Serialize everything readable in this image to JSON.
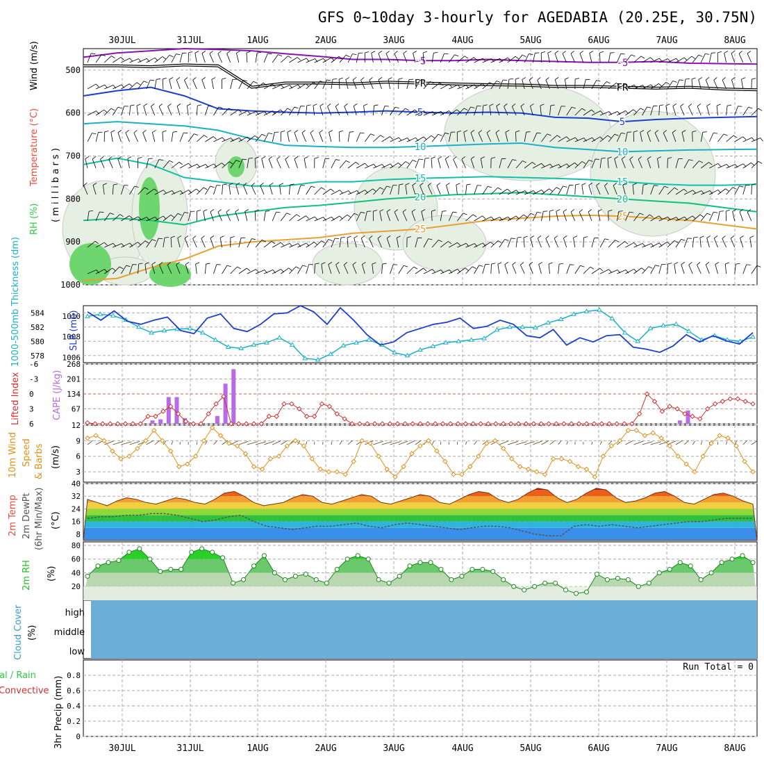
{
  "title": "GFS 0~10day 3-hourly for AGEDABIA (20.25E, 30.75N)",
  "dates": [
    "30JUL",
    "31JUL",
    "1AUG",
    "2AUG",
    "3AUG",
    "4AUG",
    "5AUG",
    "6AUG",
    "7AUG",
    "8AUG"
  ],
  "colors": {
    "rh": "#2ecc40",
    "temperature": "#e74c3c",
    "wind": "#000000",
    "thickness": "#1ab0c8",
    "slp": "#1a3fd0",
    "cape": "#b86ae8",
    "li": "#d03030",
    "wind10": "#e0901a",
    "rh2m": "#22c022",
    "cloud": "#6baed6",
    "precip_total": "#2ecc40",
    "precip_conv": "#d03030"
  },
  "panels": {
    "upper": {
      "y_ticks": [
        "500",
        "600",
        "700",
        "800",
        "900",
        "1000"
      ],
      "labels": {
        "rh": "RH (%)",
        "temperature": "Temperature (°C)",
        "wind": "Wind (m/s)",
        "pressure": "( m i l l i b a r s )"
      },
      "contours": [
        {
          "label": "FR",
          "color": "#000000",
          "values": [
            490,
            490,
            492,
            488,
            490,
            540,
            530,
            530,
            532,
            528,
            530,
            532,
            534,
            535,
            538,
            538,
            540,
            542,
            540,
            544,
            546
          ],
          "double": true
        },
        {
          "label": "-5",
          "color": "#8a10b0",
          "values": [
            470,
            460,
            455,
            450,
            452,
            455,
            462,
            468,
            475,
            475,
            478,
            478,
            475,
            478,
            480,
            482,
            482,
            480,
            484,
            485,
            486
          ]
        },
        {
          "label": "5",
          "color": "#1a3fd0",
          "values": [
            560,
            548,
            540,
            560,
            590,
            595,
            598,
            600,
            598,
            595,
            598,
            600,
            598,
            600,
            610,
            612,
            620,
            615,
            612,
            610,
            608
          ]
        },
        {
          "label": "10",
          "color": "#1ab0c8",
          "values": [
            625,
            620,
            625,
            630,
            640,
            660,
            675,
            678,
            680,
            680,
            678,
            675,
            672,
            670,
            680,
            685,
            690,
            688,
            686,
            685,
            684
          ]
        },
        {
          "label": "15",
          "color": "#10c0a8",
          "values": [
            720,
            705,
            720,
            750,
            760,
            770,
            770,
            760,
            760,
            755,
            752,
            750,
            748,
            750,
            752,
            755,
            760,
            765,
            768,
            768,
            766
          ]
        },
        {
          "label": "20",
          "color": "#10c080",
          "values": [
            850,
            845,
            850,
            860,
            840,
            830,
            820,
            815,
            808,
            800,
            795,
            790,
            788,
            785,
            790,
            795,
            800,
            805,
            810,
            820,
            830
          ]
        },
        {
          "label": "25",
          "color": "#e8a030",
          "values": [
            990,
            985,
            960,
            940,
            910,
            900,
            895,
            890,
            880,
            875,
            870,
            860,
            850,
            845,
            840,
            838,
            840,
            845,
            850,
            860,
            870
          ]
        }
      ],
      "wind_barbs_note": ""
    },
    "slp": {
      "y_ticks_left": [
        "584",
        "582",
        "580",
        "578"
      ],
      "y_ticks_right": [
        "1010",
        "1008",
        "1006"
      ],
      "labels": {
        "thickness": "1000-500mb Thickness (dm)",
        "slp": "SLP (mb)"
      }
    },
    "cape": {
      "y_ticks_left": [
        "-6",
        "-3",
        "0",
        "3",
        "6"
      ],
      "y_ticks_right": [
        "268",
        "201",
        "134",
        "67"
      ],
      "labels": {
        "li": "Lifted Index",
        "cape": "CAPE (J/kg)"
      }
    },
    "wind10": {
      "y_ticks": [
        "12",
        "9",
        "6",
        "3"
      ],
      "labels": {
        "a": "10m Wind",
        "b": "Speed",
        "c": "& Barbs",
        "unit": "(m/s)"
      }
    },
    "temp2m": {
      "y_ticks": [
        "40",
        "32",
        "24",
        "16",
        "8"
      ],
      "labels": {
        "a": "2m Temp",
        "b": "2m DewPt",
        "c": "(6hr Min/Max)",
        "unit": "(°C)"
      }
    },
    "rh2m": {
      "y_ticks": [
        "80",
        "60",
        "40",
        "20"
      ],
      "labels": {
        "a": "2m RH",
        "unit": "(%)"
      }
    },
    "cloud": {
      "levels": [
        "high",
        "middle",
        "low"
      ],
      "labels": {
        "a": "Cloud Cover",
        "unit": "(%)"
      }
    },
    "precip": {
      "y_ticks": [
        "0.8",
        "0.6",
        "0.4",
        "0.2",
        "0"
      ],
      "labels": {
        "total": "tal / Rain",
        "conv": "Convective",
        "unit": "3hr Precip (mm)"
      },
      "run_total": "Run Total = 0"
    }
  },
  "chart_data": [
    {
      "type": "line",
      "title": "1000-500mb Thickness (dm)",
      "ylim": [
        577,
        585
      ],
      "x_start": "29JUL 12Z",
      "step_hours": 3,
      "values": [
        583.5,
        583.8,
        583.6,
        583,
        582,
        581.2,
        581.5,
        581.7,
        581.8,
        581.2,
        580.2,
        579.2,
        579,
        579.5,
        579.8,
        580.5,
        579.5,
        577.6,
        577.4,
        578.2,
        579.4,
        579.8,
        580.2,
        579.5,
        578.4,
        578,
        578.8,
        579.3,
        579.8,
        580,
        580.2,
        580.4,
        581.6,
        582,
        582,
        581.9,
        582.6,
        583.1,
        583.8,
        584.2,
        584.4,
        583.2,
        581.2,
        580,
        581.8,
        582.2,
        582.4,
        581.4,
        580.2,
        580.8,
        580.2,
        580,
        580.6
      ]
    },
    {
      "type": "line",
      "title": "SLP (mb)",
      "ylim": [
        1005.5,
        1011
      ],
      "x_start": "29JUL 12Z",
      "step_hours": 3,
      "values": [
        1010.4,
        1009.6,
        1010.5,
        1009.5,
        1009.2,
        1009.6,
        1009.9,
        1008.6,
        1008.3,
        1009.8,
        1010.2,
        1008.8,
        1008.5,
        1009.2,
        1010.2,
        1010.3,
        1011,
        1010.4,
        1009.2,
        1010.8,
        1009.6,
        1008.2,
        1007.2,
        1007.5,
        1008.4,
        1008.8,
        1009.2,
        1009.4,
        1009.8,
        1008.8,
        1009,
        1009.6,
        1009.2,
        1008.1,
        1007.9,
        1008.7,
        1007.2,
        1007.9,
        1007.5,
        1008.1,
        1008.2,
        1007,
        1006.8,
        1006.5,
        1007.1,
        1008.2,
        1007.5,
        1008.1,
        1007.6,
        1007.3,
        1008.4
      ]
    },
    {
      "type": "bar",
      "title": "CAPE (J/kg)",
      "ylim": [
        0,
        268
      ],
      "x_start": "29JUL 12Z",
      "step_hours": 3,
      "values": [
        0,
        0,
        0,
        0,
        0,
        0,
        0,
        0,
        15,
        20,
        120,
        120,
        25,
        0,
        0,
        0,
        35,
        180,
        245,
        0,
        0,
        0,
        0,
        0,
        0,
        0,
        0,
        0,
        0,
        0,
        0,
        0,
        0,
        0,
        0,
        0,
        0,
        0,
        0,
        0,
        0,
        0,
        0,
        0,
        0,
        0,
        0,
        0,
        0,
        0,
        0,
        0,
        0,
        0,
        0,
        0,
        0,
        0,
        0,
        0,
        0,
        0,
        0,
        0,
        0,
        0,
        0,
        0,
        0,
        0,
        0,
        0,
        0,
        15,
        60,
        0,
        0,
        0,
        0,
        0,
        0,
        0,
        0
      ]
    },
    {
      "type": "line",
      "title": "Lifted Index",
      "ylim": [
        6,
        -6
      ],
      "x_start": "29JUL 12Z",
      "step_hours": 3,
      "values": [
        5.8,
        6,
        6,
        6,
        6,
        6,
        6,
        6,
        4.5,
        4.5,
        3.5,
        2.5,
        4,
        5.5,
        6,
        6,
        4,
        2,
        0.5,
        6,
        6,
        6,
        6,
        6,
        4.5,
        4.5,
        2,
        2,
        3,
        4.5,
        4.5,
        2,
        2.5,
        4,
        5,
        6,
        6,
        6,
        6,
        6,
        6,
        6,
        6,
        6,
        6,
        6,
        6,
        6,
        6,
        6,
        6,
        6,
        6,
        6,
        6,
        6,
        6,
        6,
        6,
        6,
        6,
        6,
        6,
        6,
        6,
        6,
        6,
        6,
        6,
        6,
        6,
        6,
        6,
        4,
        0,
        1.5,
        3.5,
        2.5,
        3,
        4,
        4.5,
        5,
        3,
        2,
        1.5,
        1,
        1,
        1.5,
        2
      ]
    },
    {
      "type": "line",
      "title": "10m Wind Speed (m/s)",
      "ylim": [
        1,
        12
      ],
      "x_start": "29JUL 12Z",
      "step_hours": 3,
      "values": [
        9.5,
        10,
        9,
        7,
        5.5,
        6,
        7.5,
        9,
        11,
        9,
        7,
        4,
        4.5,
        6,
        9,
        11.5,
        10,
        8.5,
        8,
        6.5,
        4,
        3.5,
        5.5,
        6,
        8,
        9,
        8,
        5.5,
        3.5,
        3,
        3,
        2.5,
        5,
        9,
        8.5,
        6,
        3.5,
        2,
        4,
        6.5,
        8,
        9,
        7,
        5,
        2.5,
        2.5,
        4,
        6,
        8.5,
        9,
        7.5,
        5.5,
        4,
        3.5,
        3,
        2.5,
        5.5,
        5.5,
        5,
        4,
        3.5,
        2,
        6,
        8,
        9,
        11,
        11,
        10,
        10.5,
        9.5,
        8,
        6,
        4.5,
        3,
        6,
        8.5,
        10,
        9.5,
        8,
        5,
        3
      ]
    },
    {
      "type": "area",
      "title": "2m Temp (°C)",
      "ylim": [
        4,
        40
      ],
      "x_start": "29JUL 12Z",
      "step_hours": 3,
      "values": [
        30,
        28,
        26,
        29,
        31,
        30,
        28,
        27,
        29,
        31,
        30,
        28,
        27,
        30,
        34,
        35,
        32,
        28,
        26,
        27,
        28,
        31,
        33,
        32,
        28,
        27,
        29,
        31,
        33,
        32,
        28,
        27,
        29,
        31,
        33,
        32,
        28,
        27,
        30,
        33,
        35,
        34,
        30,
        28,
        30,
        34,
        37,
        36,
        31,
        28,
        30,
        34,
        37,
        36,
        31,
        28,
        29,
        31,
        34,
        35,
        32,
        28,
        27,
        30,
        33,
        34,
        32,
        29,
        27
      ]
    },
    {
      "type": "line",
      "title": "2m DewPt (°C)",
      "ylim": [
        4,
        40
      ],
      "x_start": "29JUL 12Z",
      "step_hours": 3,
      "values": [
        18,
        19,
        19,
        20,
        20,
        21,
        21,
        20,
        18,
        16,
        17,
        19,
        20,
        16,
        13,
        12,
        11,
        12,
        13,
        13,
        14,
        15,
        13,
        12,
        14,
        15,
        14,
        13,
        12,
        11,
        12,
        13,
        13,
        12,
        10,
        8,
        7,
        7,
        13,
        14,
        13,
        14,
        13,
        12,
        13,
        14,
        15,
        16,
        16,
        17,
        18,
        18,
        18
      ]
    },
    {
      "type": "area",
      "title": "2m RH (%)",
      "ylim": [
        0,
        80
      ],
      "x_start": "29JUL 12Z",
      "step_hours": 3,
      "values": [
        35,
        50,
        55,
        58,
        70,
        75,
        60,
        42,
        45,
        45,
        70,
        75,
        70,
        62,
        25,
        30,
        50,
        65,
        40,
        30,
        35,
        38,
        30,
        25,
        45,
        60,
        65,
        60,
        30,
        25,
        35,
        50,
        55,
        55,
        45,
        30,
        35,
        45,
        45,
        42,
        30,
        20,
        15,
        20,
        25,
        25,
        15,
        10,
        12,
        38,
        30,
        32,
        30,
        20,
        25,
        40,
        45,
        55,
        50,
        30,
        40,
        55,
        60,
        65,
        55
      ]
    },
    {
      "type": "area",
      "title": "Cloud Cover (%)",
      "ylim": [
        0,
        100
      ],
      "series": [
        {
          "name": "high",
          "values": [
            100
          ]
        },
        {
          "name": "middle",
          "values": [
            100
          ]
        },
        {
          "name": "low",
          "values": [
            100
          ]
        }
      ]
    },
    {
      "type": "bar",
      "title": "3hr Precip (mm)",
      "ylim": [
        0,
        1
      ],
      "values": [
        0
      ]
    }
  ]
}
